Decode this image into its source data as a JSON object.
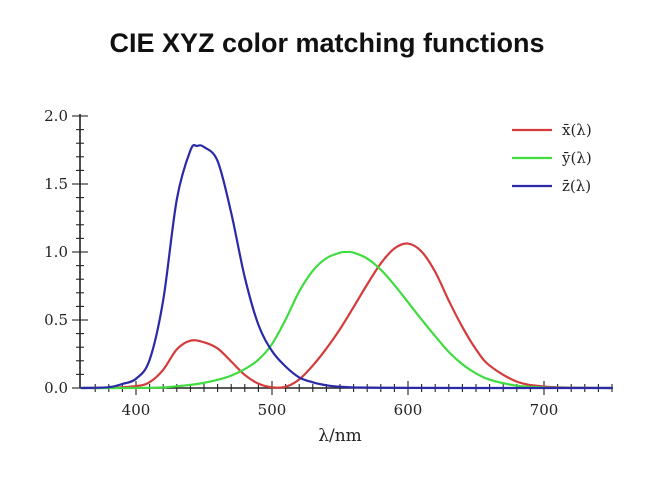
{
  "chart_data": {
    "type": "line",
    "title": "CIE XYZ color matching functions",
    "xlabel": "λ/nm",
    "ylabel": "",
    "xlim": [
      360,
      750
    ],
    "ylim": [
      0,
      2.0
    ],
    "x_ticks": [
      400,
      500,
      600,
      700
    ],
    "y_ticks": [
      "0.0",
      "0.5",
      "1.0",
      "1.5",
      "2.0"
    ],
    "legend_position": "top-right",
    "series": [
      {
        "name": "x̄(λ)",
        "color": "#d43b3b",
        "x": [
          360,
          380,
          400,
          410,
          420,
          430,
          440,
          450,
          460,
          470,
          480,
          490,
          500,
          510,
          520,
          530,
          540,
          550,
          560,
          570,
          580,
          590,
          600,
          610,
          620,
          630,
          640,
          650,
          660,
          680,
          700,
          720,
          750
        ],
        "values": [
          0.0,
          0.0014,
          0.014,
          0.043,
          0.134,
          0.284,
          0.348,
          0.336,
          0.291,
          0.195,
          0.096,
          0.032,
          0.005,
          0.009,
          0.063,
          0.165,
          0.29,
          0.433,
          0.595,
          0.762,
          0.916,
          1.026,
          1.062,
          1.003,
          0.854,
          0.642,
          0.448,
          0.284,
          0.165,
          0.047,
          0.011,
          0.003,
          0.0
        ]
      },
      {
        "name": "ȳ(λ)",
        "color": "#3fdc3f",
        "x": [
          360,
          380,
          400,
          420,
          440,
          450,
          460,
          470,
          480,
          490,
          500,
          510,
          520,
          530,
          540,
          550,
          555,
          560,
          570,
          580,
          590,
          600,
          610,
          620,
          630,
          640,
          650,
          660,
          680,
          700,
          720,
          750
        ],
        "values": [
          0.0,
          0.0,
          0.0004,
          0.004,
          0.023,
          0.038,
          0.06,
          0.091,
          0.139,
          0.208,
          0.323,
          0.503,
          0.71,
          0.862,
          0.954,
          0.995,
          1.0,
          0.995,
          0.952,
          0.87,
          0.757,
          0.631,
          0.503,
          0.381,
          0.265,
          0.175,
          0.107,
          0.061,
          0.017,
          0.004,
          0.001,
          0.0
        ]
      },
      {
        "name": "z̄(λ)",
        "color": "#2a2aa8",
        "x": [
          360,
          380,
          390,
          400,
          410,
          420,
          430,
          440,
          445,
          450,
          460,
          470,
          480,
          490,
          500,
          510,
          520,
          530,
          540,
          550,
          560,
          580,
          600,
          650,
          750
        ],
        "values": [
          0.0,
          0.006,
          0.03,
          0.068,
          0.207,
          0.646,
          1.386,
          1.747,
          1.78,
          1.772,
          1.669,
          1.288,
          0.813,
          0.465,
          0.272,
          0.158,
          0.078,
          0.042,
          0.02,
          0.009,
          0.004,
          0.002,
          0.001,
          0.0,
          0.0
        ]
      }
    ]
  }
}
